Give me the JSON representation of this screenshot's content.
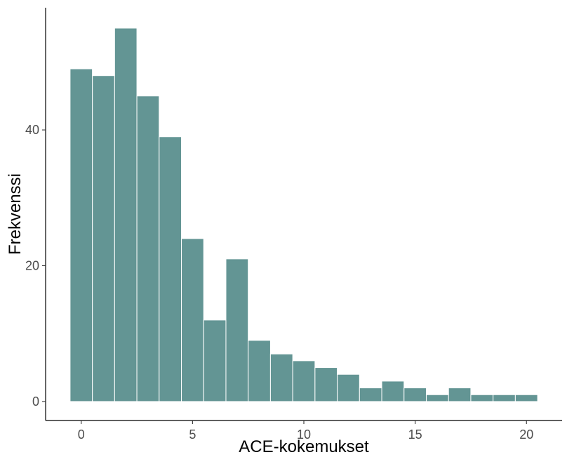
{
  "chart_data": {
    "type": "bar",
    "subtype": "histogram",
    "title": "",
    "xlabel": "ACE-kokemukset",
    "ylabel": "Frekvenssi",
    "bin_width": 1,
    "bin_centers": [
      0,
      1,
      2,
      3,
      4,
      5,
      6,
      7,
      8,
      9,
      10,
      11,
      12,
      13,
      14,
      15,
      16,
      17,
      18,
      19,
      20
    ],
    "values": [
      49,
      48,
      55,
      45,
      39,
      24,
      12,
      21,
      9,
      7,
      6,
      5,
      4,
      2,
      3,
      2,
      1,
      2,
      1,
      1,
      1
    ],
    "xlim": [
      -1.6,
      21.6
    ],
    "ylim": [
      -2.8,
      58.0
    ],
    "xticks": [
      {
        "value": 0,
        "label": "0"
      },
      {
        "value": 5,
        "label": "5"
      },
      {
        "value": 10,
        "label": "10"
      },
      {
        "value": 15,
        "label": "15"
      },
      {
        "value": 20,
        "label": "20"
      }
    ],
    "yticks": [
      {
        "value": 0,
        "label": "0"
      },
      {
        "value": 20,
        "label": "20"
      },
      {
        "value": 40,
        "label": "40"
      }
    ],
    "grid": false,
    "legend": "none",
    "bar_fill": "#639594",
    "bar_outline": "#ffffff",
    "axis_color": "#000000",
    "tick_label_color": "#4d4d4d"
  }
}
